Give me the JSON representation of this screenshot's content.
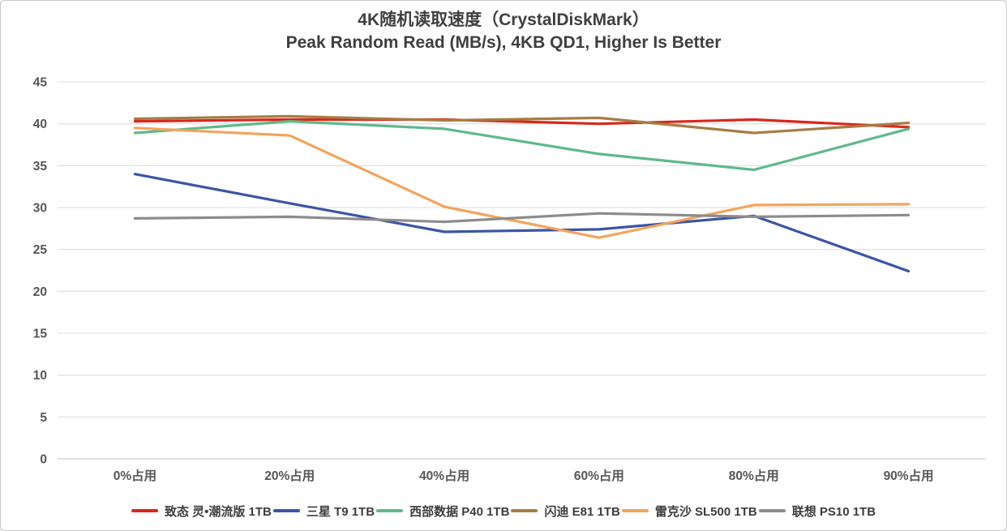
{
  "title": "4K随机读取速度（CrystalDiskMark）",
  "subtitle": "Peak Random Read (MB/s), 4KB QD1, Higher Is Better",
  "chart_data": {
    "type": "line",
    "categories": [
      "0%占用",
      "20%占用",
      "40%占用",
      "60%占用",
      "80%占用",
      "90%占用"
    ],
    "series": [
      {
        "name": "致态 灵•潮流版 1TB",
        "color": "#d9261c",
        "values": [
          40.3,
          40.5,
          40.5,
          40.0,
          40.5,
          39.6
        ]
      },
      {
        "name": "三星 T9 1TB",
        "color": "#3b55a5",
        "values": [
          34.0,
          30.5,
          27.1,
          27.4,
          29.0,
          22.4
        ]
      },
      {
        "name": "西部数据 P40 1TB",
        "color": "#5fb98b",
        "values": [
          38.9,
          40.3,
          39.4,
          36.4,
          34.5,
          39.4
        ]
      },
      {
        "name": "闪迪 E81 1TB",
        "color": "#a67d42",
        "values": [
          40.6,
          40.9,
          40.4,
          40.7,
          38.9,
          40.1
        ]
      },
      {
        "name": "雷克沙 SL500 1TB",
        "color": "#f3a45c",
        "values": [
          39.5,
          38.6,
          30.1,
          26.4,
          30.3,
          30.4
        ]
      },
      {
        "name": "联想 PS10 1TB",
        "color": "#8c8c8c",
        "values": [
          28.7,
          28.9,
          28.3,
          29.3,
          28.9,
          29.1
        ]
      }
    ],
    "ylim": [
      0,
      45
    ],
    "ytick_step": 5,
    "xlabel": "",
    "ylabel": "",
    "grid": "horizontal",
    "legend_position": "bottom"
  },
  "style": {
    "grid_color": "#e3e3e3",
    "zero_line_color": "#d6d6d6",
    "tick_label_color": "#565656",
    "title_color": "#3f3f3f",
    "line_width": 3.2
  }
}
